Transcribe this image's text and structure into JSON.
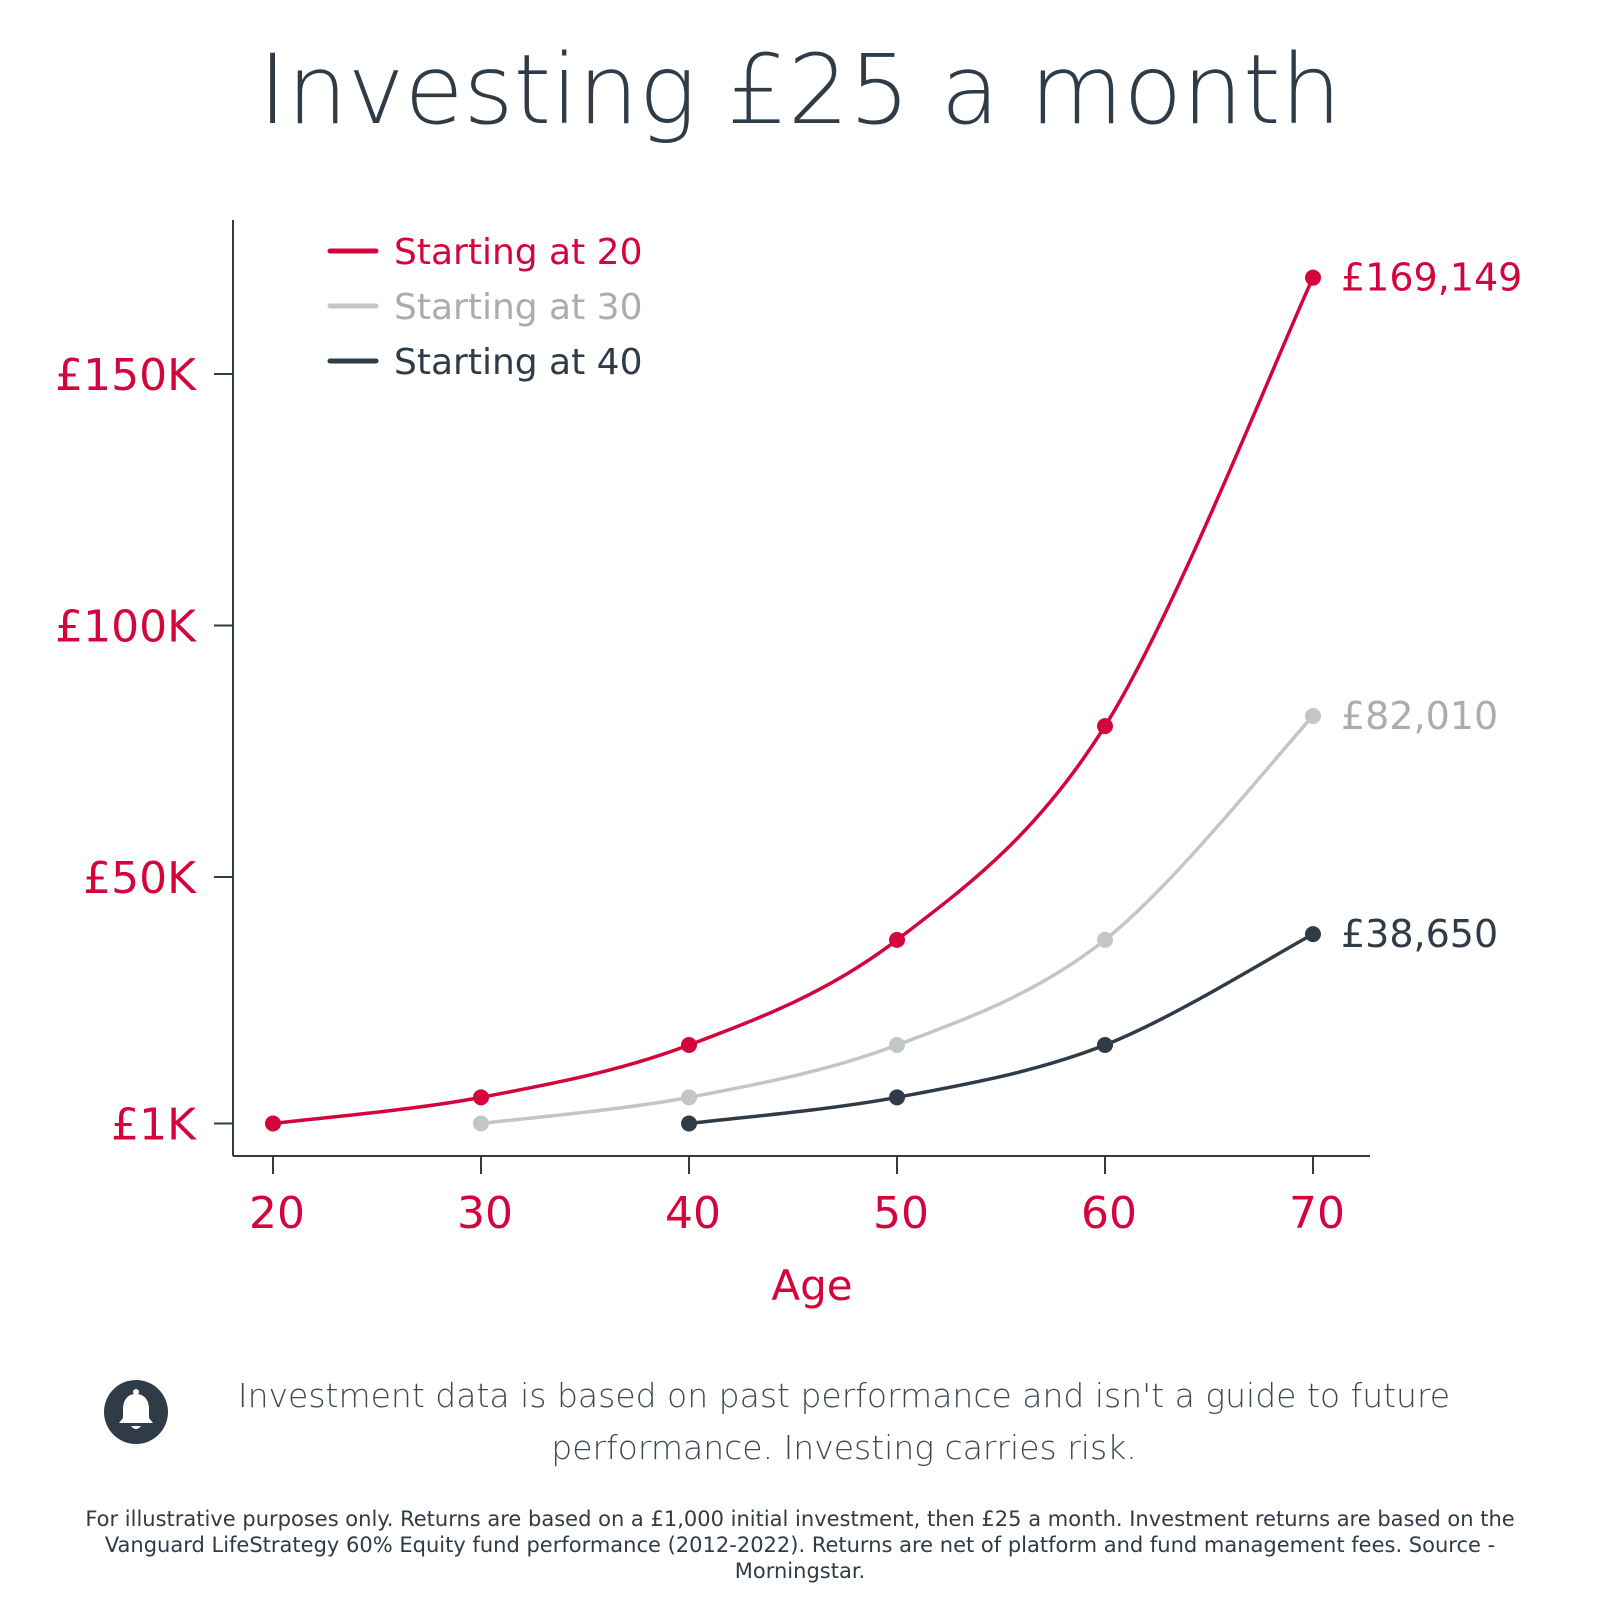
{
  "title": "Investing £25 a month",
  "colors": {
    "red": "#d4043c",
    "grey": "#c3c6c8",
    "dark": "#2f3b46",
    "axis": "#2f3b46",
    "grey_label": "#a9adb0"
  },
  "chart_data": {
    "type": "line",
    "xlabel": "Age",
    "ylabel": "",
    "x_ticks": [
      "20",
      "30",
      "40",
      "50",
      "60",
      "70"
    ],
    "y_ticks": [
      {
        "label": "£1K",
        "value": 1000
      },
      {
        "label": "£50K",
        "value": 50000
      },
      {
        "label": "£100K",
        "value": 100000
      },
      {
        "label": "£150K",
        "value": 150000
      }
    ],
    "ylim": [
      -5000,
      180000
    ],
    "xlim": [
      18,
      73
    ],
    "legend_position": "top-left",
    "grid": false,
    "series": [
      {
        "name": "Starting at 20",
        "color": "#d4043c",
        "x": [
          20,
          30,
          40,
          50,
          60,
          70
        ],
        "y": [
          1000,
          6200,
          16600,
          37500,
          80000,
          169149
        ],
        "end_label": "£169,149",
        "end_label_color": "#d4043c"
      },
      {
        "name": "Starting at 30",
        "color": "#c3c6c8",
        "x": [
          30,
          40,
          50,
          60,
          70
        ],
        "y": [
          1000,
          6200,
          16600,
          37500,
          82010
        ],
        "end_label": "£82,010",
        "end_label_color": "#a9adb0"
      },
      {
        "name": "Starting at 40",
        "color": "#2f3b46",
        "x": [
          40,
          50,
          60,
          70
        ],
        "y": [
          1000,
          6200,
          16600,
          38650
        ],
        "end_label": "£38,650",
        "end_label_color": "#2f3b46"
      }
    ]
  },
  "notice": {
    "icon": "bell-icon",
    "text": "Investment data is based on past performance and isn't a guide to future performance. Investing carries risk."
  },
  "footnote": "For illustrative purposes only. Returns are based on a £1,000 initial investment, then £25 a month. Investment returns are based on the Vanguard LifeStrategy 60% Equity fund performance (2012-2022). Returns are net of platform and fund management fees. Source - Morningstar."
}
